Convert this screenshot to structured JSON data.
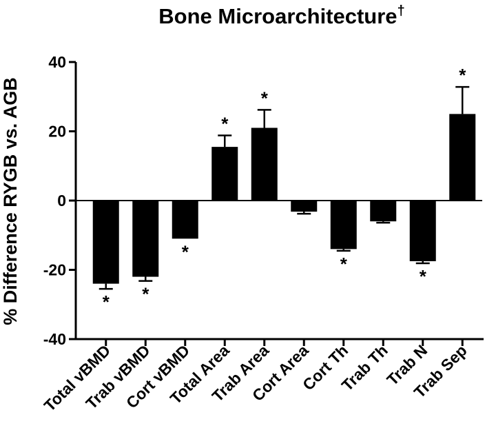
{
  "chart_data": {
    "type": "bar",
    "title": "Bone Microarchitecture",
    "title_mark": "†",
    "ylabel": "% Difference RYGB vs. AGB",
    "xlabel": "",
    "ylim": [
      -40,
      40
    ],
    "yticks": [
      40,
      20,
      0,
      -20,
      -40
    ],
    "grid": false,
    "categories": [
      "Total vBMD",
      "Trab vBMD",
      "Cort vBMD",
      "Total Area",
      "Trab Area",
      "Cort Area",
      "Cort Th",
      "Trab Th",
      "Trab N",
      "Trab Sep"
    ],
    "values": [
      -24,
      -22,
      -11,
      15.5,
      21,
      -3.2,
      -14,
      -6,
      -17.5,
      25
    ],
    "errors": [
      1.5,
      1.2,
      0,
      3.3,
      5.2,
      0.6,
      0.5,
      0.4,
      0.6,
      7.8
    ],
    "significance": [
      "*",
      "*",
      "*",
      "*",
      "*",
      "",
      "*",
      "",
      "*",
      "*"
    ],
    "bar_color": "#000000"
  }
}
